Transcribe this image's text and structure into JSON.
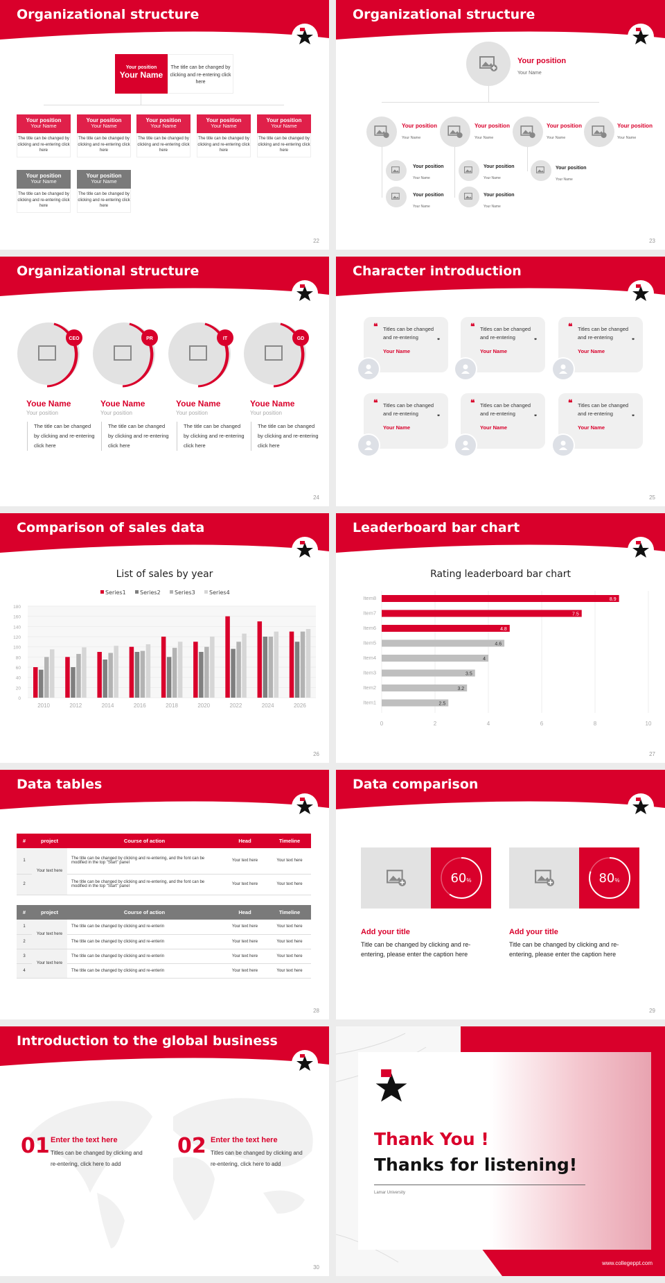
{
  "colors": {
    "accent": "#d9002b",
    "dark_gray": "#808080",
    "light_gray": "#e2e2e2"
  },
  "slides": {
    "s22": {
      "title": "Organizational structure",
      "page": "22",
      "top": {
        "position": "Your position",
        "name": "Your Name",
        "desc": "The title can be changed by clicking and re-entering click here"
      },
      "boxes": [
        {
          "position": "Your position",
          "name": "Your Name",
          "desc": "The title can be changed by clicking and re-entering click here"
        },
        {
          "position": "Your position",
          "name": "Your Name",
          "desc": "The title can be changed by clicking and re-entering click here"
        },
        {
          "position": "Your position",
          "name": "Your Name",
          "desc": "The title can be changed by clicking and re-entering click here"
        },
        {
          "position": "Your position",
          "name": "Your Name",
          "desc": "The title can be changed by clicking and re-entering click here"
        },
        {
          "position": "Your position",
          "name": "Your Name",
          "desc": "The title can be changed by clicking and re-entering click here"
        },
        {
          "position": "Your position",
          "name": "Your Name",
          "desc": "The title can be changed by clicking and re-entering click here"
        },
        {
          "position": "Your position",
          "name": "Your Name",
          "desc": "The title can be changed by clicking and re-entering click here"
        }
      ]
    },
    "s23": {
      "title": "Organizational structure",
      "page": "23",
      "top": {
        "position": "Your position",
        "name": "Your Name"
      },
      "level2": [
        {
          "position": "Your position",
          "name": "Your Name"
        },
        {
          "position": "Your position",
          "name": "Your Name"
        },
        {
          "position": "Your position",
          "name": "Your Name"
        },
        {
          "position": "Your position",
          "name": "Your Name"
        }
      ],
      "level3": [
        {
          "position": "Your position",
          "name": "Your Name"
        },
        {
          "position": "Your position",
          "name": "Your Name"
        },
        {
          "position": "Your position",
          "name": "Your Name"
        },
        {
          "position": "Your position",
          "name": "Your Name"
        },
        {
          "position": "Your position",
          "name": "Your Name"
        }
      ]
    },
    "s24": {
      "title": "Organizational structure",
      "page": "24",
      "members": [
        {
          "badge": "CEO",
          "name": "Youe Name",
          "position": "Your position",
          "desc": "The title can be changed by clicking and re-entering click here"
        },
        {
          "badge": "PR",
          "name": "Youe Name",
          "position": "Your position",
          "desc": "The title can be changed by clicking and re-entering click here"
        },
        {
          "badge": "IT",
          "name": "Youe Name",
          "position": "Your position",
          "desc": "The title can be changed by clicking and re-entering click here"
        },
        {
          "badge": "GD",
          "name": "Youe Name",
          "position": "Your position",
          "desc": "The title can be changed by clicking and re-entering click here"
        }
      ]
    },
    "s25": {
      "title": "Character introduction",
      "page": "25",
      "cards": [
        {
          "text": "Titles can be changed and re-entering",
          "name": "Your Name"
        },
        {
          "text": "Titles can be changed and re-entering",
          "name": "Your Name"
        },
        {
          "text": "Titles can be changed and re-entering",
          "name": "Your Name"
        },
        {
          "text": "Titles can be changed and re-entering",
          "name": "Your Name"
        },
        {
          "text": "Titles can be changed and re-entering",
          "name": "Your Name"
        },
        {
          "text": "Titles can be changed and re-entering",
          "name": "Your Name"
        }
      ],
      "open_quote": "❝",
      "close_quote": "❞"
    },
    "s26": {
      "title": "Comparison of sales data",
      "page": "26"
    },
    "s27": {
      "title": "Leaderboard bar chart",
      "page": "27"
    },
    "s28": {
      "title": "Data tables",
      "page": "28",
      "headers": [
        "#",
        "project",
        "Course of action",
        "Head",
        "Timeline"
      ],
      "table1": {
        "project": "Your text here",
        "rows": [
          {
            "num": "1",
            "action": "The title can be changed by clicking and re-entering, and the font can be modified in the top \"Start\" panel",
            "head": "Your text here",
            "timeline": "Your text here"
          },
          {
            "num": "2",
            "action": "The title can be changed by clicking and re-entering, and the font can be modified in the top \"Start\" panel",
            "head": "Your text here",
            "timeline": "Your text here"
          }
        ]
      },
      "table2": {
        "projects": [
          "Your text here",
          "Your text here"
        ],
        "rows": [
          {
            "num": "1",
            "action": "The title can be changed by clicking and re-enterin",
            "head": "Your text here",
            "timeline": "Your text here"
          },
          {
            "num": "2",
            "action": "The title can be changed by clicking and re-enterin",
            "head": "Your text here",
            "timeline": "Your text here"
          },
          {
            "num": "3",
            "action": "The title can be changed by clicking and re-enterin",
            "head": "Your text here",
            "timeline": "Your text here"
          },
          {
            "num": "4",
            "action": "The title can be changed by clicking and re-enterin",
            "head": "Your text here",
            "timeline": "Your text here"
          }
        ]
      }
    },
    "s29": {
      "title": "Data comparison",
      "page": "29",
      "items": [
        {
          "value": "60",
          "unit": "%",
          "title": "Add your title",
          "desc": "Title can be changed by clicking and re-entering, please enter the caption here"
        },
        {
          "value": "80",
          "unit": "%",
          "title": "Add your title",
          "desc": "Title can be changed by clicking and re-entering, please enter the caption here"
        }
      ]
    },
    "s30": {
      "title": "Introduction to the global business",
      "page": "30",
      "items": [
        {
          "num": "01",
          "title": "Enter the text here",
          "desc": "Titles can be changed by clicking and re-entering, click here to add"
        },
        {
          "num": "02",
          "title": "Enter the text here",
          "desc": "Titles can be changed by clicking and re-entering, click here to add"
        }
      ]
    },
    "end": {
      "thank": "Thank You !",
      "thanks": "Thanks for listening!",
      "university": "Lamar University",
      "website": "www.collegeppt.com"
    }
  },
  "chart_data": [
    {
      "type": "bar",
      "title": "List of sales by year",
      "xlabel": "",
      "ylabel": "",
      "categories": [
        "2010",
        "2012",
        "2014",
        "2016",
        "2018",
        "2020",
        "2022",
        "2024",
        "2026"
      ],
      "series": [
        {
          "name": "Series1",
          "color": "#d9002b",
          "values": [
            60,
            80,
            90,
            100,
            120,
            110,
            160,
            150,
            130
          ]
        },
        {
          "name": "Series2",
          "color": "#7f7f7f",
          "values": [
            55,
            60,
            75,
            90,
            80,
            90,
            96,
            120,
            110
          ]
        },
        {
          "name": "Series3",
          "color": "#b3b3b3",
          "values": [
            80,
            86,
            88,
            92,
            98,
            100,
            110,
            120,
            130
          ]
        },
        {
          "name": "Series4",
          "color": "#d6d6d6",
          "values": [
            95,
            99,
            102,
            105,
            110,
            120,
            126,
            130,
            135
          ]
        }
      ],
      "ylim": [
        0,
        180
      ],
      "yticks": [
        0,
        20,
        40,
        60,
        80,
        100,
        120,
        140,
        160,
        180
      ],
      "grid": true,
      "legend_position": "top"
    },
    {
      "type": "bar",
      "orientation": "horizontal",
      "title": "Rating leaderboard bar chart",
      "categories": [
        "Item8",
        "Item7",
        "Item6",
        "Item5",
        "Item4",
        "Item3",
        "Item2",
        "Item1"
      ],
      "values": [
        8.9,
        7.5,
        4.8,
        4.6,
        4,
        3.5,
        3.2,
        2.5
      ],
      "colors": [
        "#d9002b",
        "#d9002b",
        "#d9002b",
        "#bfbfbf",
        "#bfbfbf",
        "#bfbfbf",
        "#bfbfbf",
        "#bfbfbf"
      ],
      "xlim": [
        0,
        10
      ],
      "xticks": [
        0,
        2,
        4,
        6,
        8,
        10
      ],
      "grid": true,
      "data_labels": true
    }
  ]
}
